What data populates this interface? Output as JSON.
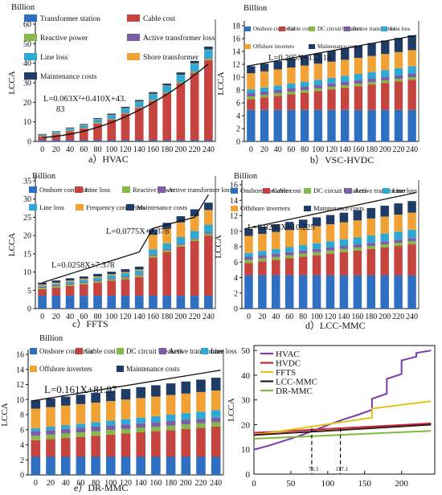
{
  "components": {
    "transformer_station": {
      "label": "Transformer station",
      "color": "#2e6fc2"
    },
    "onshore_converter": {
      "label": "Onshore converter",
      "color": "#2e6fc2"
    },
    "cable_cost": {
      "label": "Cable cost",
      "color": "#c6443f"
    },
    "line_loss_red": {
      "label": "Line loss",
      "color": "#c6443f"
    },
    "reactive_power": {
      "label": "Reactive power",
      "color": "#86b94c"
    },
    "dc_breakers": {
      "label": "DC circuit breakers",
      "color": "#86b94c"
    },
    "active_transformer_loss": {
      "label": "Active transformer loss",
      "color": "#7b5ea6"
    },
    "active_transformer": {
      "label": "Active transformer",
      "color": "#7b5ea6"
    },
    "line_loss": {
      "label": "Line loss",
      "color": "#2fa8d4"
    },
    "shore_transformer": {
      "label": "Shore transformer",
      "color": "#f2a234"
    },
    "offshore_inverters": {
      "label": "Offshore inverters",
      "color": "#f2a234"
    },
    "frequency_converters": {
      "label": "Frequency converters",
      "color": "#f2a234"
    },
    "maintenance": {
      "label": "Maintenance costs",
      "color": "#1e3c66"
    }
  },
  "chart_data": [
    {
      "id": "a",
      "type": "bar",
      "stacked": true,
      "unit": "Billion",
      "ylabel": "LCCA",
      "caption": "a）HVAC",
      "categories": [
        "0",
        "20",
        "40",
        "60",
        "80",
        "100",
        "120",
        "140",
        "160",
        "180",
        "200",
        "220",
        "240"
      ],
      "ylim": [
        0,
        60
      ],
      "yticks": [
        0,
        10,
        20,
        30,
        40,
        50,
        60
      ],
      "legend": [
        "transformer_station",
        "cable_cost",
        "reactive_power",
        "active_transformer_loss",
        "line_loss",
        "shore_transformer",
        "maintenance"
      ],
      "series": [
        {
          "key": "transformer_station",
          "values": [
            0.6,
            0.6,
            0.6,
            0.6,
            0.6,
            0.6,
            0.6,
            0.6,
            0.6,
            0.6,
            0.6,
            0.6,
            0.6
          ]
        },
        {
          "key": "cable_cost",
          "values": [
            1.8,
            3,
            4.5,
            6,
            8.5,
            10.5,
            13.5,
            16.5,
            20,
            24,
            29,
            34.5,
            41
          ]
        },
        {
          "key": "reactive_power",
          "values": [
            0.3,
            0.3,
            0.3,
            0.3,
            0.4,
            0.4,
            0.4,
            0.5,
            0.5,
            0.5,
            0.6,
            0.6,
            0.7
          ]
        },
        {
          "key": "active_transformer_loss",
          "values": [
            0.3,
            0.3,
            0.3,
            0.3,
            0.3,
            0.3,
            0.3,
            0.3,
            0.3,
            0.3,
            0.3,
            0.3,
            0.3
          ]
        },
        {
          "key": "line_loss",
          "values": [
            0.3,
            0.5,
            0.8,
            1.1,
            1.4,
            1.6,
            2,
            2.3,
            2.7,
            3,
            3.4,
            3.7,
            4.2
          ]
        },
        {
          "key": "shore_transformer",
          "values": [
            0.2,
            0.2,
            0.2,
            0.2,
            0.2,
            0.2,
            0.2,
            0.2,
            0.2,
            0.2,
            0.2,
            0.2,
            0.2
          ]
        },
        {
          "key": "maintenance",
          "values": [
            0.3,
            0.3,
            0.4,
            0.4,
            0.5,
            0.6,
            0.7,
            0.8,
            0.9,
            1,
            1.2,
            1.3,
            1.5
          ]
        }
      ],
      "fit": {
        "label": [
          "L=0.063X²+0.410X+43.",
          "83"
        ],
        "kind": "quad",
        "a": 0.063,
        "b": 0.41,
        "c": 2,
        "xscale": 20
      }
    },
    {
      "id": "b",
      "type": "bar",
      "stacked": true,
      "unit": "Billion",
      "ylabel": "LCCA",
      "caption": "b）VSC-HVDC",
      "categories": [
        "0",
        "20",
        "40",
        "60",
        "80",
        "100",
        "120",
        "140",
        "160",
        "180",
        "200",
        "220",
        "240"
      ],
      "ylim": [
        0,
        18
      ],
      "yticks": [
        0,
        2,
        4,
        6,
        8,
        10,
        12,
        14,
        16,
        18
      ],
      "legend": [
        "onshore_converter",
        "cable_cost",
        "dc_breakers",
        "active_transformer",
        "line_loss",
        "offshore_inverters",
        "maintenance"
      ],
      "series": [
        {
          "key": "onshore_converter",
          "values": [
            4.9,
            4.9,
            4.9,
            4.9,
            4.9,
            4.9,
            4.9,
            4.9,
            4.9,
            4.9,
            4.9,
            4.9,
            4.9
          ]
        },
        {
          "key": "cable_cost",
          "values": [
            1.7,
            1.95,
            2.2,
            2.45,
            2.7,
            2.95,
            3.2,
            3.45,
            3.7,
            3.95,
            4.2,
            4.45,
            4.7
          ]
        },
        {
          "key": "dc_breakers",
          "values": [
            0.4,
            0.4,
            0.4,
            0.4,
            0.4,
            0.4,
            0.4,
            0.4,
            0.4,
            0.4,
            0.4,
            0.4,
            0.4
          ]
        },
        {
          "key": "active_transformer",
          "values": [
            0.5,
            0.5,
            0.5,
            0.5,
            0.5,
            0.5,
            0.5,
            0.5,
            0.5,
            0.5,
            0.5,
            0.5,
            0.5
          ]
        },
        {
          "key": "line_loss",
          "values": [
            0.6,
            0.65,
            0.7,
            0.75,
            0.8,
            0.85,
            0.9,
            0.95,
            1,
            1.05,
            1.1,
            1.15,
            1.2
          ]
        },
        {
          "key": "offshore_inverters",
          "values": [
            2.5,
            2.5,
            2.5,
            2.5,
            2.5,
            2.5,
            2.5,
            2.5,
            2.5,
            2.5,
            2.5,
            2.5,
            2.5
          ]
        },
        {
          "key": "maintenance",
          "values": [
            1.1,
            1.2,
            1.3,
            1.4,
            1.5,
            1.6,
            1.7,
            1.8,
            1.9,
            2,
            2.1,
            2.2,
            2.3
          ]
        }
      ],
      "fit": {
        "label": [
          "L=0.205X+112.18"
        ],
        "kind": "lin",
        "y0": 11.7,
        "y1": 16.5
      }
    },
    {
      "id": "c",
      "type": "bar",
      "stacked": true,
      "unit": "Billion",
      "ylabel": "LCCA",
      "caption": "c）FFTS",
      "categories": [
        "0",
        "20",
        "40",
        "60",
        "80",
        "100",
        "120",
        "140",
        "160",
        "180",
        "200",
        "220",
        "240"
      ],
      "ylim": [
        0,
        35
      ],
      "yticks": [
        0,
        5,
        10,
        15,
        20,
        25,
        30,
        35
      ],
      "legend": [
        "onshore_converter",
        "line_loss_red",
        "reactive_power",
        "active_transformer_loss",
        "line_loss",
        "frequency_converters",
        "maintenance"
      ],
      "series": [
        {
          "key": "onshore_converter",
          "values": [
            3.5,
            3.5,
            3.5,
            3.5,
            3.5,
            3.5,
            3.5,
            3.5,
            3.5,
            3.5,
            3.5,
            3.5,
            3.5
          ]
        },
        {
          "key": "line_loss_red",
          "values": [
            1.8,
            2.2,
            2.7,
            3.1,
            3.6,
            4.1,
            4.6,
            5.1,
            10.5,
            12,
            13.5,
            15,
            16.5
          ]
        },
        {
          "key": "reactive_power",
          "values": [
            0.4,
            0.4,
            0.4,
            0.4,
            0.4,
            0.4,
            0.4,
            0.5,
            0.5,
            0.5,
            0.5,
            0.5,
            0.5
          ]
        },
        {
          "key": "active_transformer_loss",
          "values": [
            0.3,
            0.3,
            0.3,
            0.3,
            0.3,
            0.3,
            0.3,
            0.3,
            0.3,
            0.3,
            0.3,
            0.3,
            0.3
          ]
        },
        {
          "key": "line_loss",
          "values": [
            0.3,
            0.4,
            0.5,
            0.6,
            0.7,
            0.8,
            0.9,
            1,
            1.4,
            1.6,
            1.8,
            2,
            2.2
          ]
        },
        {
          "key": "frequency_converters",
          "values": [
            0.3,
            0.3,
            0.3,
            0.3,
            0.3,
            0.3,
            0.3,
            0.3,
            4,
            4,
            4,
            4,
            4
          ]
        },
        {
          "key": "maintenance",
          "values": [
            0.5,
            0.6,
            0.6,
            0.6,
            0.7,
            0.7,
            0.8,
            0.8,
            1.5,
            1.6,
            1.7,
            1.9,
            2
          ]
        }
      ],
      "fit": {
        "label": [
          "L=0.0258X+7.378",
          "L=0.0775X+7.378"
        ],
        "kind": "piecewise",
        "segments": [
          [
            0,
            7.1,
            7,
            15.5
          ],
          [
            7,
            15.5,
            8,
            22
          ],
          [
            8,
            22,
            11,
            25
          ],
          [
            11,
            25,
            12,
            31.2
          ]
        ]
      }
    },
    {
      "id": "d",
      "type": "bar",
      "stacked": true,
      "unit": "Billion",
      "ylabel": "LCCA",
      "caption": "d）LCC-MMC",
      "categories": [
        "0",
        "20",
        "40",
        "60",
        "80",
        "100",
        "120",
        "140",
        "160",
        "180",
        "200",
        "220",
        "240"
      ],
      "ylim": [
        0,
        16
      ],
      "yticks": [
        0,
        2,
        4,
        6,
        8,
        10,
        12,
        14,
        16
      ],
      "legend": [
        "onshore_converter",
        "cable_cost",
        "dc_breakers",
        "active_transformer",
        "line_loss",
        "offshore_inverters",
        "maintenance"
      ],
      "series": [
        {
          "key": "onshore_converter",
          "values": [
            4.3,
            4.3,
            4.3,
            4.3,
            4.3,
            4.3,
            4.3,
            4.3,
            4.3,
            4.3,
            4.3,
            4.3,
            4.3
          ]
        },
        {
          "key": "cable_cost",
          "values": [
            1.6,
            1.8,
            2,
            2.2,
            2.4,
            2.6,
            2.8,
            3,
            3.2,
            3.4,
            3.6,
            3.8,
            4
          ]
        },
        {
          "key": "dc_breakers",
          "values": [
            0.4,
            0.4,
            0.4,
            0.4,
            0.4,
            0.4,
            0.4,
            0.4,
            0.4,
            0.4,
            0.4,
            0.4,
            0.4
          ]
        },
        {
          "key": "active_transformer",
          "values": [
            0.4,
            0.4,
            0.4,
            0.4,
            0.4,
            0.4,
            0.4,
            0.4,
            0.4,
            0.4,
            0.4,
            0.4,
            0.4
          ]
        },
        {
          "key": "line_loss",
          "values": [
            0.5,
            0.55,
            0.6,
            0.65,
            0.7,
            0.75,
            0.8,
            0.85,
            0.9,
            0.95,
            1,
            1.05,
            1.1
          ]
        },
        {
          "key": "offshore_inverters",
          "values": [
            2.2,
            2.2,
            2.2,
            2.2,
            2.2,
            2.2,
            2.2,
            2.2,
            2.2,
            2.2,
            2.2,
            2.2,
            2.2
          ]
        },
        {
          "key": "maintenance",
          "values": [
            0.9,
            0.95,
            1,
            1.05,
            1.1,
            1.15,
            1.2,
            1.25,
            1.3,
            1.35,
            1.4,
            1.45,
            1.5
          ]
        }
      ],
      "fit": {
        "label": [
          "L=0.0205X+10.225"
        ],
        "kind": "lin",
        "y0": 10.3,
        "y1": 15.0
      }
    },
    {
      "id": "e",
      "type": "bar",
      "stacked": true,
      "unit": "Billion",
      "ylabel": "LCCA",
      "caption": "e）DR-MMC",
      "categories": [
        "0",
        "20",
        "40",
        "60",
        "80",
        "100",
        "120",
        "140",
        "160",
        "180",
        "200",
        "220",
        "240"
      ],
      "ylim": [
        0,
        16
      ],
      "yticks": [
        0,
        2,
        4,
        6,
        8,
        10,
        12,
        14,
        16
      ],
      "legend": [
        "onshore_converter",
        "cable_cost",
        "dc_breakers",
        "active_transformer",
        "line_loss",
        "offshore_inverters",
        "maintenance"
      ],
      "series": [
        {
          "key": "onshore_converter",
          "values": [
            2.4,
            2.4,
            2.4,
            2.4,
            2.4,
            2.4,
            2.4,
            2.4,
            2.4,
            2.4,
            2.4,
            2.4,
            2.4
          ]
        },
        {
          "key": "cable_cost",
          "values": [
            2.2,
            2.35,
            2.5,
            2.65,
            2.8,
            2.95,
            3.1,
            3.25,
            3.4,
            3.55,
            3.7,
            3.85,
            4
          ]
        },
        {
          "key": "dc_breakers",
          "values": [
            0.6,
            0.6,
            0.6,
            0.6,
            0.6,
            0.6,
            0.6,
            0.6,
            0.6,
            0.6,
            0.6,
            0.6,
            0.6
          ]
        },
        {
          "key": "active_transformer",
          "values": [
            0.6,
            0.6,
            0.6,
            0.6,
            0.6,
            0.6,
            0.6,
            0.6,
            0.6,
            0.6,
            0.6,
            0.6,
            0.6
          ]
        },
        {
          "key": "line_loss",
          "values": [
            0.4,
            0.45,
            0.5,
            0.55,
            0.6,
            0.65,
            0.7,
            0.75,
            0.8,
            0.85,
            0.9,
            0.95,
            1
          ]
        },
        {
          "key": "offshore_inverters",
          "values": [
            2.6,
            2.6,
            2.6,
            2.6,
            2.6,
            2.6,
            2.6,
            2.6,
            2.6,
            2.6,
            2.6,
            2.6,
            2.6
          ]
        },
        {
          "key": "maintenance",
          "values": [
            1.1,
            1.15,
            1.2,
            1.25,
            1.3,
            1.35,
            1.4,
            1.45,
            1.5,
            1.55,
            1.6,
            1.65,
            1.7
          ]
        }
      ],
      "fit": {
        "label": [
          "L=0.161X+81.97"
        ],
        "kind": "lin",
        "y0": 9.8,
        "y1": 13.9
      }
    },
    {
      "id": "f",
      "type": "line",
      "ylabel": "LCCA",
      "xlim": [
        0,
        245
      ],
      "xticks": [
        0,
        50,
        100,
        150,
        200
      ],
      "ylim": [
        0,
        52
      ],
      "yticks": [
        0,
        10,
        20,
        30,
        40,
        50
      ],
      "annotations": [
        {
          "x": 78.3,
          "label": "78.3"
        },
        {
          "x": 117.1,
          "label": "117.1"
        }
      ],
      "series": [
        {
          "name": "HVAC",
          "color": "#7d3aa8",
          "x": [
            0,
            20,
            40,
            60,
            80,
            100,
            120,
            140,
            160,
            160,
            180,
            180,
            200,
            200,
            220,
            220,
            240
          ],
          "y": [
            9.9,
            11.5,
            13.4,
            15.3,
            17.5,
            19.8,
            22,
            23.9,
            26,
            30.5,
            32.5,
            38.5,
            40.5,
            46,
            47.5,
            49,
            50
          ]
        },
        {
          "name": "HVDC",
          "color": "#c8253d",
          "x": [
            0,
            240
          ],
          "y": [
            16.7,
            20.5
          ]
        },
        {
          "name": "FFTS",
          "color": "#e2c21c",
          "x": [
            0,
            160,
            160,
            240
          ],
          "y": [
            15.8,
            22.8,
            26.5,
            29.5
          ]
        },
        {
          "name": "LCC-MMC",
          "color": "#3a1a14",
          "x": [
            0,
            240
          ],
          "y": [
            15.8,
            20
          ]
        },
        {
          "name": "DR-MMC",
          "color": "#7fb83a",
          "x": [
            0,
            240
          ],
          "y": [
            14.3,
            17.5
          ]
        }
      ]
    }
  ]
}
